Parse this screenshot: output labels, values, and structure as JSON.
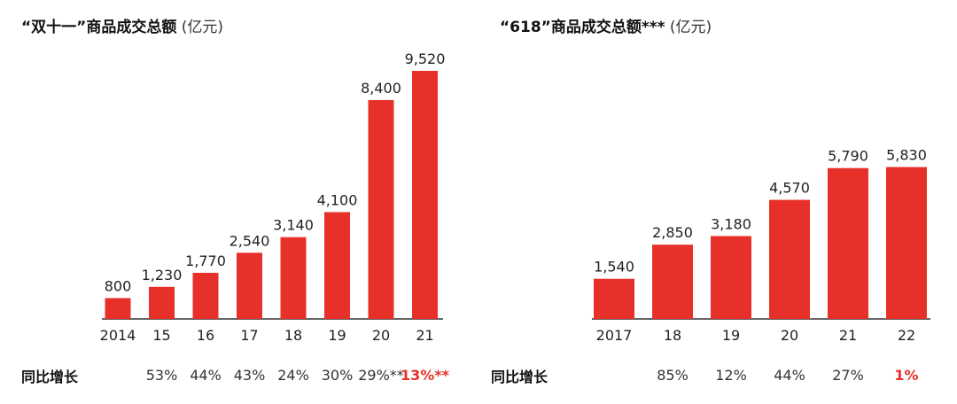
{
  "chart_data": [
    {
      "type": "bar",
      "title": "“双十一”商品成交总额",
      "unit": "(亿元)",
      "categories": [
        "2014",
        "15",
        "16",
        "17",
        "18",
        "19",
        "20",
        "21"
      ],
      "values": [
        800,
        1230,
        1770,
        2540,
        3140,
        4100,
        8400,
        9520
      ],
      "value_labels": [
        "800",
        "1,230",
        "1,770",
        "2,540",
        "3,140",
        "4,100",
        "8,400",
        "9,520"
      ],
      "ylim": [
        0,
        10000
      ],
      "growth_label": "同比增长",
      "growth": [
        "",
        "53%",
        "44%",
        "43%",
        "24%",
        "30%",
        "29%**",
        "13%**"
      ],
      "growth_highlight": [
        false,
        false,
        false,
        false,
        false,
        false,
        false,
        true
      ],
      "bar_color": "#e8302a",
      "highlight_color": "#e8302a"
    },
    {
      "type": "bar",
      "title": "“618”商品成交总额***",
      "unit": "(亿元)",
      "categories": [
        "2017",
        "18",
        "19",
        "20",
        "21",
        "22"
      ],
      "values": [
        1540,
        2850,
        3180,
        4570,
        5790,
        5830
      ],
      "value_labels": [
        "1,540",
        "2,850",
        "3,180",
        "4,570",
        "5,790",
        "5,830"
      ],
      "ylim": [
        0,
        10000
      ],
      "growth_label": "同比增长",
      "growth": [
        "",
        "85%",
        "12%",
        "44%",
        "27%",
        "1%"
      ],
      "growth_highlight": [
        false,
        false,
        false,
        false,
        false,
        true
      ],
      "bar_color": "#e8302a",
      "highlight_color": "#e8302a"
    }
  ]
}
